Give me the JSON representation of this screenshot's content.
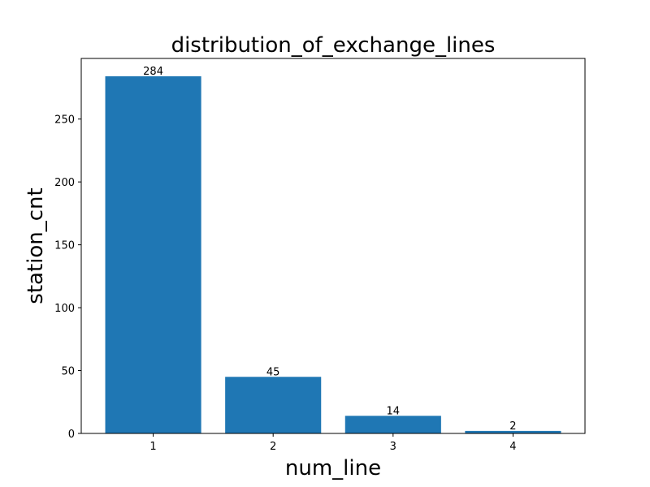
{
  "chart_data": {
    "type": "bar",
    "title": "distribution_of_exchange_lines",
    "xlabel": "num_line",
    "ylabel": "station_cnt",
    "categories": [
      "1",
      "2",
      "3",
      "4"
    ],
    "values": [
      284,
      45,
      14,
      2
    ],
    "data_labels": [
      "284",
      "45",
      "14",
      "2"
    ],
    "yticks": [
      0,
      50,
      100,
      150,
      200,
      250
    ],
    "ytick_labels": [
      "0",
      "50",
      "100",
      "150",
      "200",
      "250"
    ],
    "ylim": [
      0,
      298.2
    ],
    "bar_color": "#1f77b4",
    "grid": false,
    "legend": "none"
  }
}
